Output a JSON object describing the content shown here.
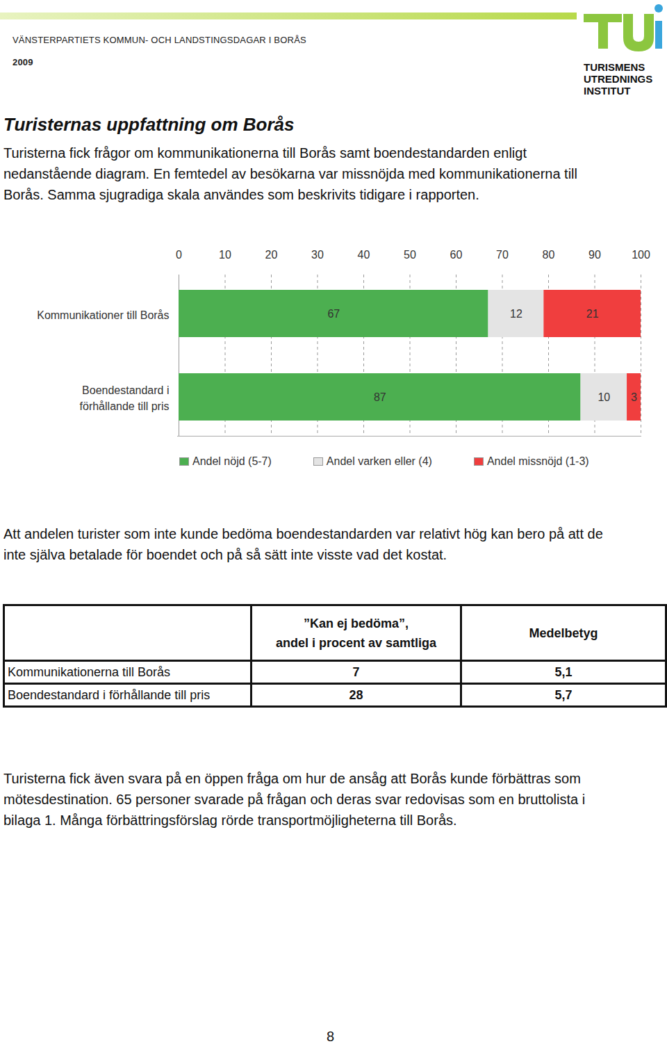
{
  "header": {
    "line": "VÄNSTERPARTIETS KOMMUN- OCH LANDSTINGSDAGAR I BORÅS",
    "year": "2009",
    "logo": [
      "TURISMENS",
      "UTREDNINGS",
      "INSTITUT"
    ]
  },
  "title": "Turisternas uppfattning om Borås",
  "intro": [
    "Turisterna fick frågor om kommunikationerna till Borås samt boendestandarden enligt",
    "nedanstående diagram. En femtedel av besökarna var missnöjda med kommunikationerna till",
    "Borås. Samma sjugradiga skala användes som beskrivits tidigare i rapporten."
  ],
  "chart_data": {
    "type": "bar",
    "orientation": "horizontal",
    "stacked": true,
    "data_labels": true,
    "grid": true,
    "legend": "bottom",
    "categories": [
      "Kommunikationer till Borås",
      "Boendestandard i\nförhållande till pris"
    ],
    "series": [
      {
        "name": "Andel nöjd (5-7)",
        "color": "#4caf50",
        "values": [
          67,
          87
        ]
      },
      {
        "name": "Andel varken eller (4)",
        "color": "#e4e4e4",
        "values": [
          12,
          10
        ]
      },
      {
        "name": "Andel missnöjd (1-3)",
        "color": "#f03e3e",
        "values": [
          21,
          3
        ]
      }
    ],
    "xlim": [
      0,
      100
    ],
    "xticks": [
      0,
      10,
      20,
      30,
      40,
      50,
      60,
      70,
      80,
      90,
      100
    ]
  },
  "note": [
    "Att andelen turister som inte kunde bedöma boendestandarden var relativt hög kan bero på att de",
    "inte själva betalade för boendet och på så sätt inte visste vad det kostat."
  ],
  "table": {
    "columns": [
      [
        "”Kan ej bedöma”,",
        "andel i procent av samtliga"
      ],
      [
        "Medelbetyg"
      ]
    ],
    "rows": [
      [
        "Kommunikationerna till Borås",
        "7",
        "5,1"
      ],
      [
        "Boendestandard i förhållande till pris",
        "28",
        "5,7"
      ]
    ]
  },
  "closing": [
    "Turisterna fick även svara på en öppen fråga om hur de ansåg att Borås kunde förbättras som",
    "mötesdestination. 65 personer svarade på frågan och deras svar redovisas som en bruttolista i",
    "bilaga 1. Många förbättringsförslag rörde transportmöjligheterna till Borås."
  ],
  "page_number": "8"
}
